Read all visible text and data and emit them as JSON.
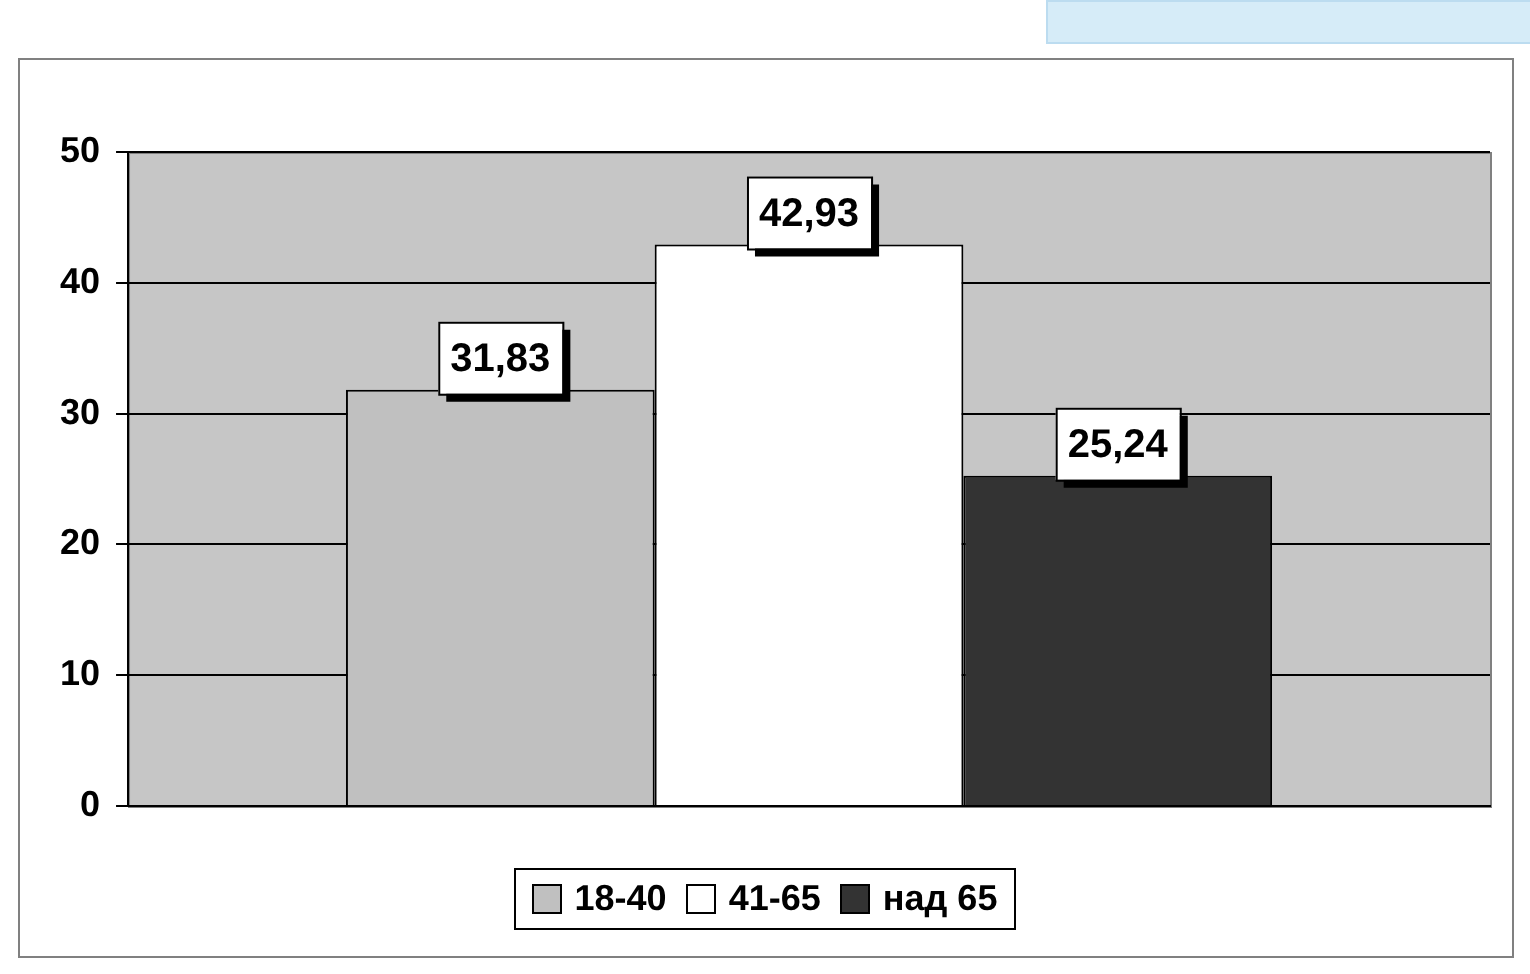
{
  "chart_data": {
    "type": "bar",
    "categories": [
      null
    ],
    "series": [
      {
        "name": "18-40",
        "color": "#c0c0c0",
        "values": [
          31.83
        ],
        "value_labels": [
          "31,83"
        ]
      },
      {
        "name": "41-65",
        "color": "#ffffff",
        "values": [
          42.93
        ],
        "value_labels": [
          "42,93"
        ]
      },
      {
        "name": "над 65",
        "color": "#333333",
        "values": [
          25.24
        ],
        "value_labels": [
          "25,24"
        ]
      }
    ],
    "ylim": [
      0,
      50
    ],
    "yticks": [
      0,
      10,
      20,
      30,
      40,
      50
    ],
    "grid": "y",
    "legend": "bottom"
  }
}
